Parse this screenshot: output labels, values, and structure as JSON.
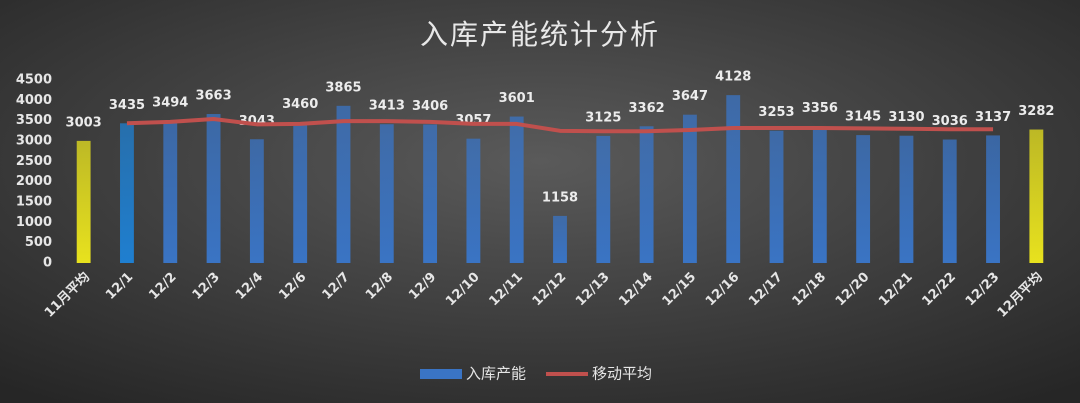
{
  "chart_data": {
    "type": "bar",
    "title": "入库产能统计分析",
    "categories": [
      "11月平均",
      "12/1",
      "12/2",
      "12/3",
      "12/4",
      "12/6",
      "12/7",
      "12/8",
      "12/9",
      "12/10",
      "12/11",
      "12/12",
      "12/13",
      "12/14",
      "12/15",
      "12/16",
      "12/17",
      "12/18",
      "12/20",
      "12/21",
      "12/22",
      "12/23",
      "12月平均"
    ],
    "series": [
      {
        "name": "入库产能",
        "color": "#3a74c4",
        "bar_colors": [
          "#e8e21e",
          "#1f7fd0",
          "#3a74c4",
          "#3a74c4",
          "#3a74c4",
          "#3a74c4",
          "#3a74c4",
          "#3a74c4",
          "#3a74c4",
          "#3a74c4",
          "#3a74c4",
          "#3a74c4",
          "#3a74c4",
          "#3a74c4",
          "#3a74c4",
          "#3a74c4",
          "#3a74c4",
          "#3a74c4",
          "#3a74c4",
          "#3a74c4",
          "#3a74c4",
          "#3a74c4",
          "#e8e21e"
        ],
        "values": [
          3003,
          3435,
          3494,
          3663,
          3043,
          3460,
          3865,
          3413,
          3406,
          3057,
          3601,
          1158,
          3125,
          3362,
          3647,
          4128,
          3253,
          3356,
          3145,
          3130,
          3036,
          3137,
          3282
        ]
      },
      {
        "name": "移动平均",
        "type": "line",
        "color": "#c0504d",
        "values": [
          null,
          3435,
          3470,
          3540,
          3410,
          3420,
          3490,
          3490,
          3470,
          3420,
          3420,
          3250,
          3240,
          3240,
          3270,
          3320,
          3320,
          3320,
          3310,
          3300,
          3290,
          3290,
          null
        ]
      }
    ],
    "ylim": [
      0,
      4500
    ],
    "yticks": [
      0,
      500,
      1000,
      1500,
      2000,
      2500,
      3000,
      3500,
      4000,
      4500
    ],
    "grid": false,
    "legend": "bottom"
  }
}
